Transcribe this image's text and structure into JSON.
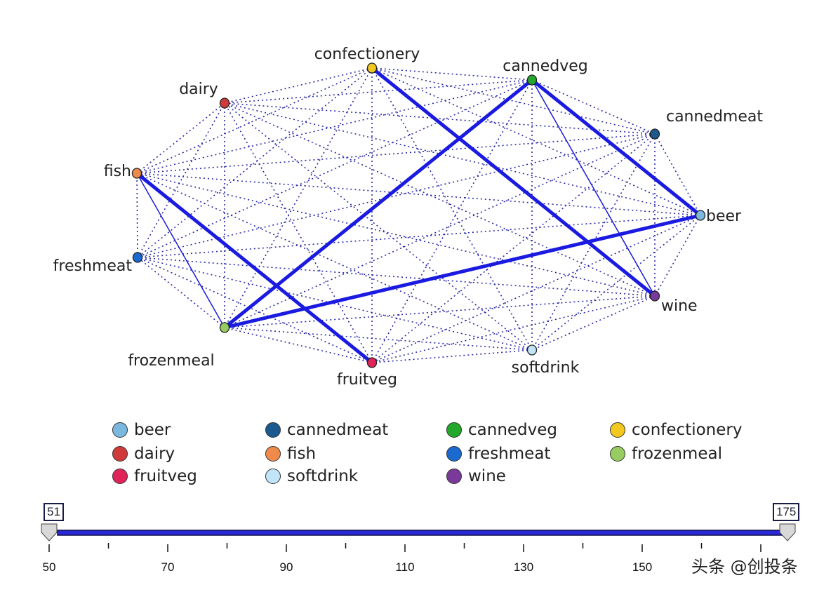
{
  "nodes": [
    {
      "id": "confectionery",
      "label": "confectionery",
      "color": "#f2c81e"
    },
    {
      "id": "cannedveg",
      "label": "cannedveg",
      "color": "#22a82a"
    },
    {
      "id": "cannedmeat",
      "label": "cannedmeat",
      "color": "#1a5a8e"
    },
    {
      "id": "beer",
      "label": "beer",
      "color": "#7ab8e0"
    },
    {
      "id": "wine",
      "label": "wine",
      "color": "#7a3a9a"
    },
    {
      "id": "softdrink",
      "label": "softdrink",
      "color": "#c0e4f8"
    },
    {
      "id": "fruitveg",
      "label": "fruitveg",
      "color": "#e0245a"
    },
    {
      "id": "frozenmeal",
      "label": "frozenmeal",
      "color": "#96cc60"
    },
    {
      "id": "freshmeat",
      "label": "freshmeat",
      "color": "#1a6ad0"
    },
    {
      "id": "fish",
      "label": "fish",
      "color": "#f08a4a"
    },
    {
      "id": "dairy",
      "label": "dairy",
      "color": "#d03a3a"
    }
  ],
  "strong_links": [
    [
      "confectionery",
      "wine"
    ],
    [
      "cannedveg",
      "beer"
    ],
    [
      "cannedveg",
      "frozenmeal"
    ],
    [
      "beer",
      "frozenmeal"
    ],
    [
      "fish",
      "fruitveg"
    ]
  ],
  "medium_links": [
    [
      "cannedveg",
      "wine"
    ],
    [
      "fish",
      "frozenmeal"
    ]
  ],
  "link_color": "#1a1ae0",
  "legend": [
    {
      "label": "beer",
      "color": "#7ab8e0"
    },
    {
      "label": "cannedmeat",
      "color": "#1a5a8e"
    },
    {
      "label": "cannedveg",
      "color": "#22a82a"
    },
    {
      "label": "confectionery",
      "color": "#f2c81e"
    },
    {
      "label": "dairy",
      "color": "#d03a3a"
    },
    {
      "label": "fish",
      "color": "#f08a4a"
    },
    {
      "label": "freshmeat",
      "color": "#1a6ad0"
    },
    {
      "label": "frozenmeal",
      "color": "#96cc60"
    },
    {
      "label": "fruitveg",
      "color": "#e0245a"
    },
    {
      "label": "softdrink",
      "color": "#c0e4f8"
    },
    {
      "label": "wine",
      "color": "#7a3a9a"
    }
  ],
  "slider": {
    "min_value": "51",
    "max_value": "175",
    "tick_labels": [
      "50",
      "70",
      "90",
      "110",
      "130",
      "150"
    ]
  },
  "watermark": "头条 @创投条"
}
